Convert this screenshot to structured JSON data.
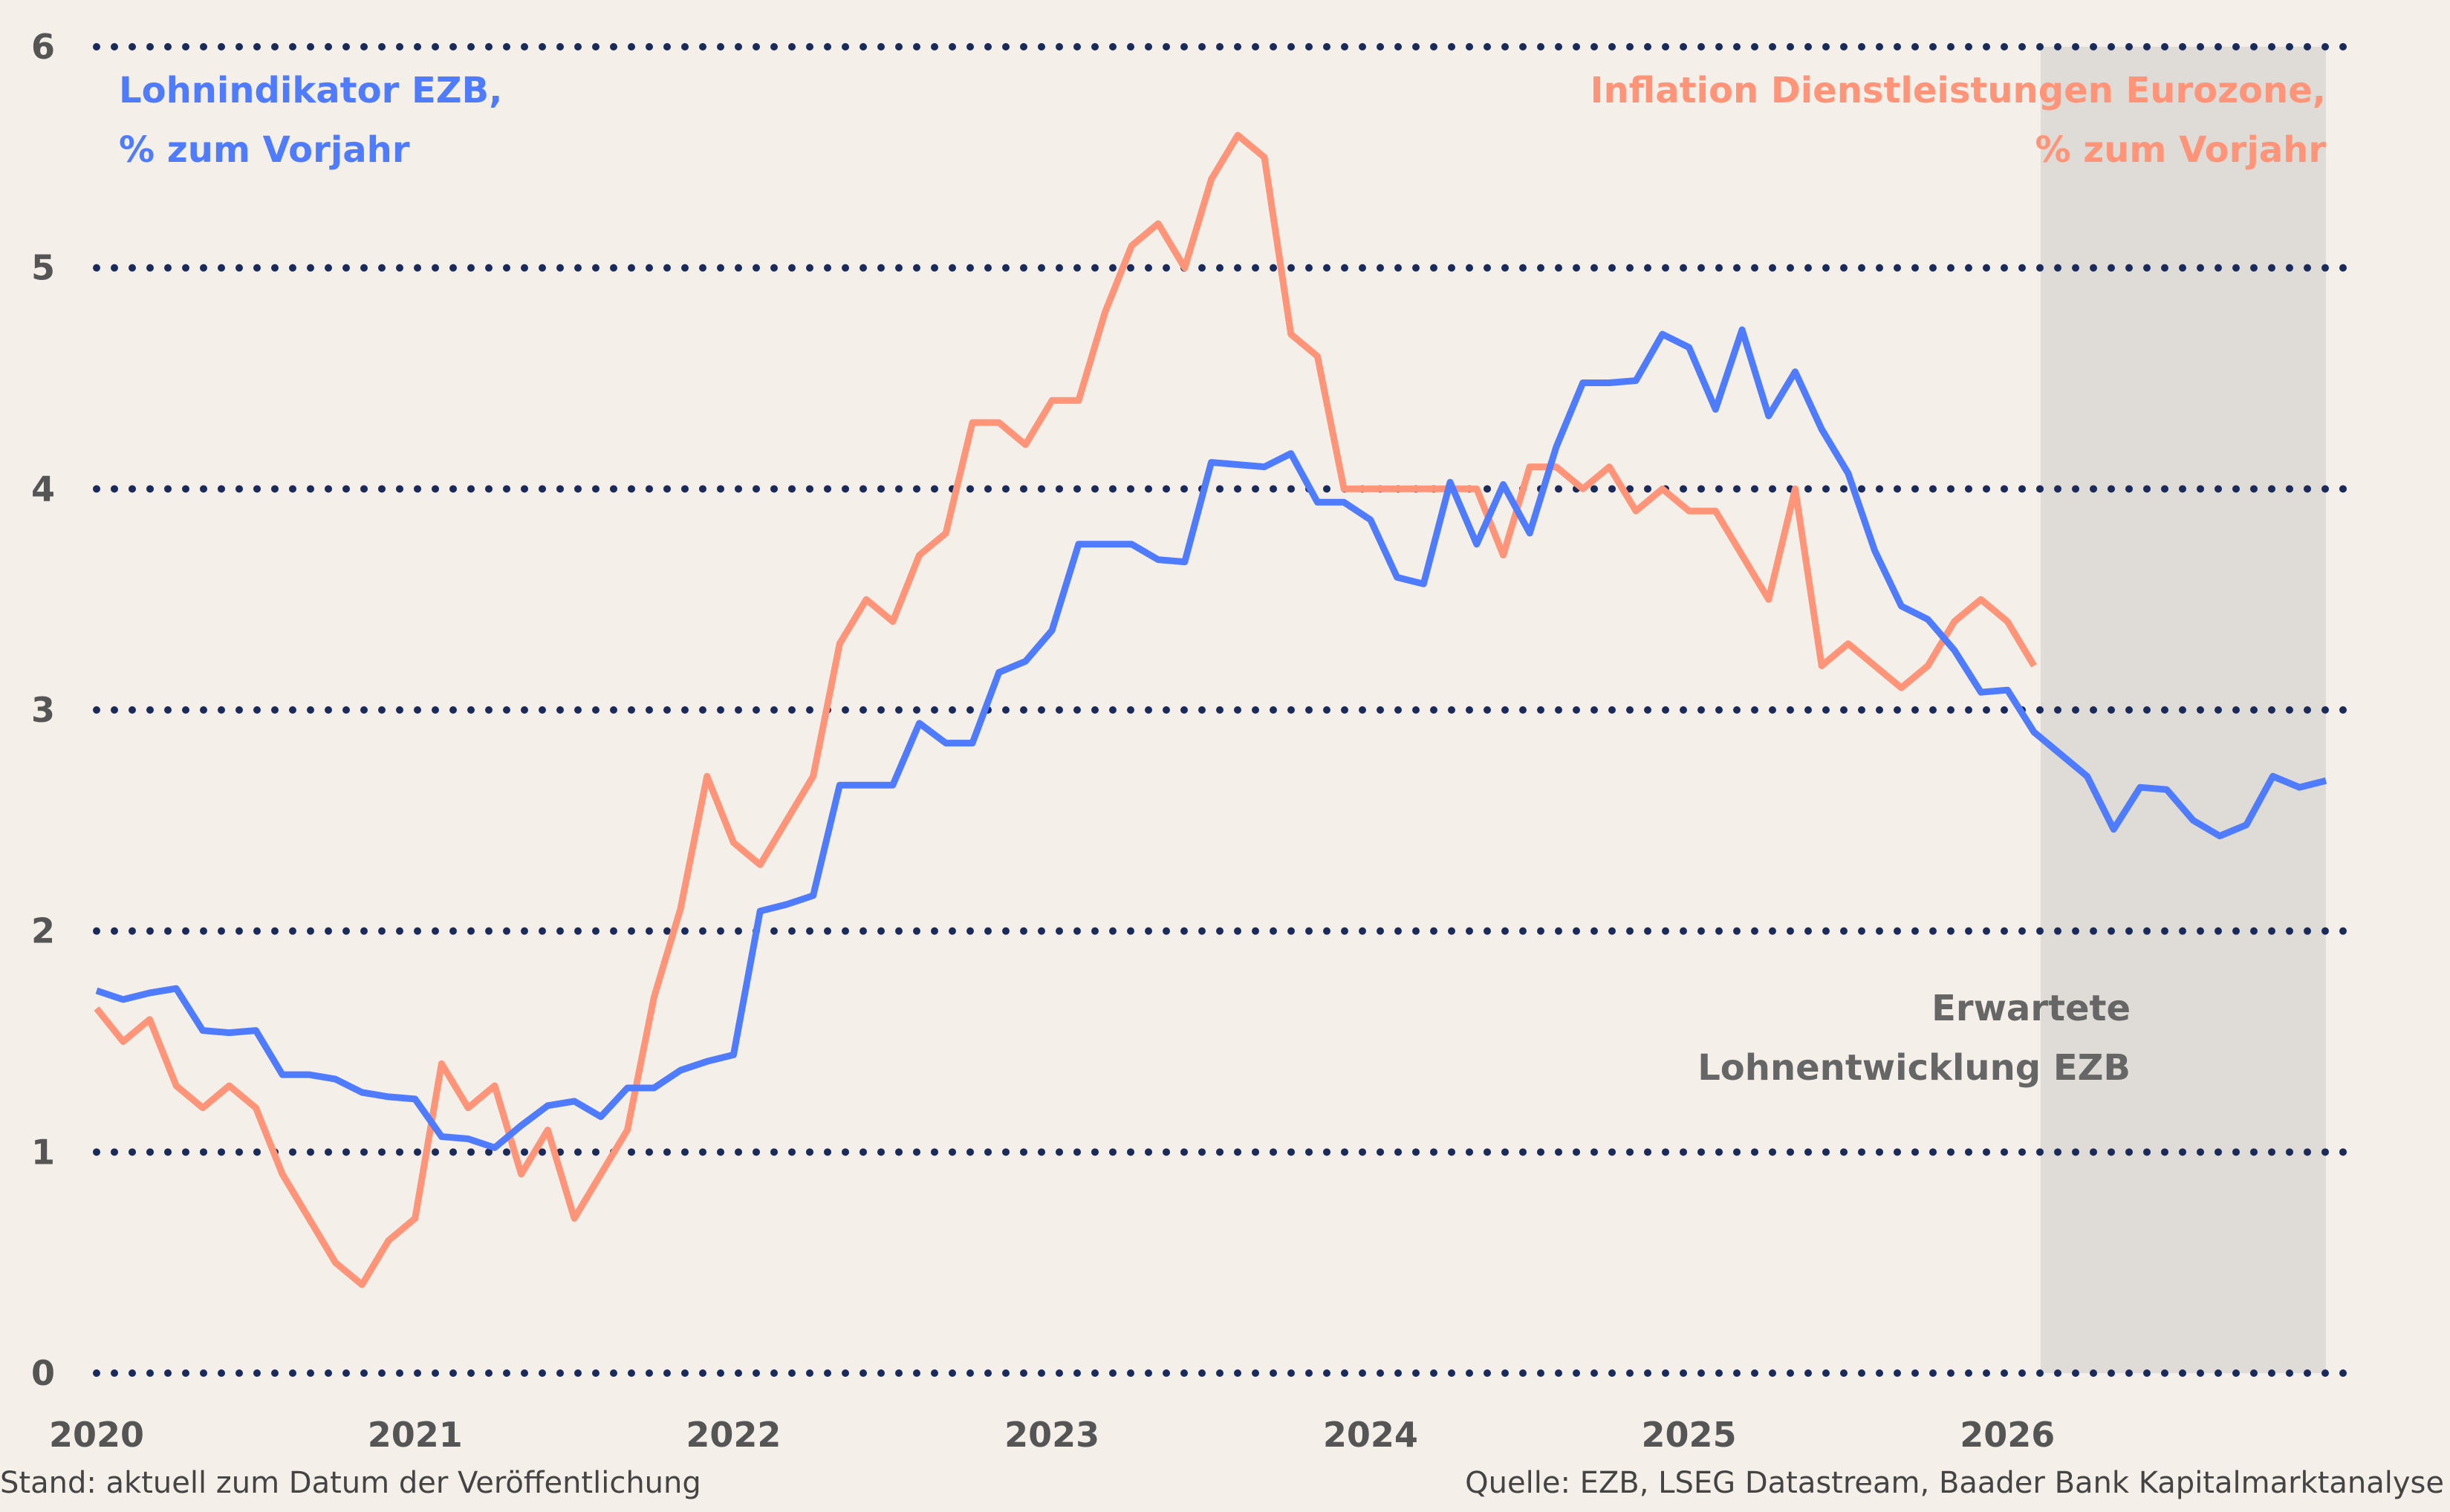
{
  "chart_data": {
    "type": "line",
    "x_start": "2019-12",
    "x_frequency": "monthly",
    "x_tick_labels": [
      "2020",
      "2021",
      "2022",
      "2023",
      "2024",
      "2025",
      "2026"
    ],
    "ylim": [
      0,
      6
    ],
    "y_ticks": [
      "0",
      "1",
      "2",
      "3",
      "4",
      "5",
      "6"
    ],
    "grid": "horizontal dotted",
    "forecast_shading": {
      "from": "2026-01",
      "to": "2026-12",
      "label_line1": "Erwartete",
      "label_line2": "Lohnentwicklung EZB",
      "color": "#dfdbd7"
    },
    "series": [
      {
        "name": "Lohnindikator EZB, % zum Vorjahr",
        "label_line1": "Lohnindikator EZB,",
        "label_line2": "% zum Vorjahr",
        "color": "#4f7bff",
        "values": [
          1.73,
          1.69,
          1.72,
          1.74,
          1.55,
          1.54,
          1.55,
          1.35,
          1.35,
          1.33,
          1.27,
          1.25,
          1.24,
          1.07,
          1.06,
          1.02,
          1.12,
          1.21,
          1.23,
          1.16,
          1.29,
          1.29,
          1.37,
          1.41,
          1.44,
          2.09,
          2.12,
          2.16,
          2.66,
          2.66,
          2.66,
          2.94,
          2.85,
          2.85,
          3.17,
          3.22,
          3.36,
          3.75,
          3.75,
          3.75,
          3.68,
          3.67,
          4.12,
          4.11,
          4.1,
          4.16,
          3.94,
          3.94,
          3.86,
          3.6,
          3.57,
          4.03,
          3.75,
          4.02,
          3.8,
          4.19,
          4.48,
          4.48,
          4.49,
          4.7,
          4.64,
          4.36,
          4.72,
          4.33,
          4.53,
          4.27,
          4.07,
          3.72,
          3.47,
          3.41,
          3.27,
          3.08,
          3.09,
          2.9,
          2.8,
          2.7,
          2.46,
          2.65,
          2.64,
          2.5,
          2.43,
          2.48,
          2.7,
          2.65,
          2.68
        ]
      },
      {
        "name": "Inflation Dienstleistungen Eurozone, % zum Vorjahr",
        "label_line1": "Inflation Dienstleistungen Eurozone,",
        "label_line2": "% zum Vorjahr",
        "color": "#ff9478",
        "values": [
          1.65,
          1.5,
          1.6,
          1.3,
          1.2,
          1.3,
          1.2,
          0.9,
          0.7,
          0.5,
          0.4,
          0.6,
          0.7,
          1.4,
          1.2,
          1.3,
          0.9,
          1.1,
          0.7,
          0.9,
          1.1,
          1.7,
          2.1,
          2.7,
          2.4,
          2.3,
          2.5,
          2.7,
          3.3,
          3.5,
          3.4,
          3.7,
          3.8,
          4.3,
          4.3,
          4.2,
          4.4,
          4.4,
          4.8,
          5.1,
          5.2,
          5.0,
          5.4,
          5.6,
          5.5,
          4.7,
          4.6,
          4.0,
          4.0,
          4.0,
          4.0,
          4.0,
          4.0,
          3.7,
          4.1,
          4.1,
          4.0,
          4.1,
          3.9,
          4.0,
          3.9,
          3.9,
          3.7,
          3.5,
          4.0,
          3.2,
          3.3,
          3.2,
          3.1,
          3.2,
          3.4,
          3.5,
          3.4,
          3.2
        ]
      }
    ]
  },
  "footer": {
    "left": "Stand: aktuell zum Datum der Veröffentlichung",
    "right": "Quelle: EZB, LSEG Datastream, Baader Bank Kapitalmarktanalyse"
  },
  "colors": {
    "background": "#f5efe9",
    "grid": "#1a2a5a",
    "tick_text": "#555555"
  }
}
